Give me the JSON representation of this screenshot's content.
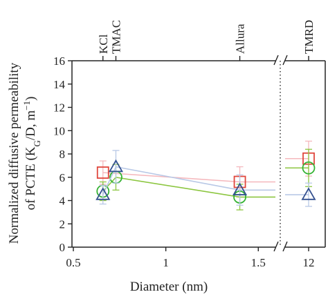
{
  "chart_data": {
    "type": "scatter",
    "xlabel": "Diameter (nm)",
    "ylabel_line1": "Normalized diffusive permeability",
    "ylabel_line2_prefix": "of PCTE (K",
    "ylabel_line2_sub": "G",
    "ylabel_line2_mid": "/D, m",
    "ylabel_line2_sup": "−1",
    "ylabel_line2_suffix": ")",
    "ylim": [
      0,
      16
    ],
    "y_ticks": [
      "0",
      "2",
      "4",
      "6",
      "8",
      "10",
      "12",
      "14",
      "16"
    ],
    "xlim": [
      0.5,
      1.6
    ],
    "x_ticks": [
      "0.5",
      "1",
      "1.5"
    ],
    "x_break_ticks": [
      "12"
    ],
    "top_labels": [
      {
        "text": "KCl",
        "x": 0.66
      },
      {
        "text": "TMAC",
        "x": 0.73
      },
      {
        "text": "Allura",
        "x": 1.4
      },
      {
        "text": "TMRD",
        "x": 12
      }
    ],
    "series": [
      {
        "marker": "square",
        "color": "#e0463c",
        "line_color": "#f5b8bd",
        "x": [
          0.66,
          1.4
        ],
        "y": [
          6.4,
          5.6
        ],
        "err": [
          1.0,
          1.3
        ],
        "break_value": 7.6,
        "break_err": 1.5
      },
      {
        "marker": "circle",
        "color": "#35b233",
        "line_color": "#8cc640",
        "x": [
          0.66,
          0.73,
          1.4
        ],
        "y": [
          4.8,
          6.0,
          4.3
        ],
        "err": [
          0.8,
          1.1,
          1.1
        ],
        "break_value": 6.8,
        "break_err": 1.6
      },
      {
        "marker": "triangle",
        "color": "#33508f",
        "line_color": "#b8c8e6",
        "x": [
          0.66,
          0.73,
          1.4
        ],
        "y": [
          4.5,
          6.9,
          4.9
        ],
        "err": [
          0.8,
          1.4,
          1.3
        ],
        "break_value": 4.5,
        "break_err": 1.0
      }
    ]
  }
}
